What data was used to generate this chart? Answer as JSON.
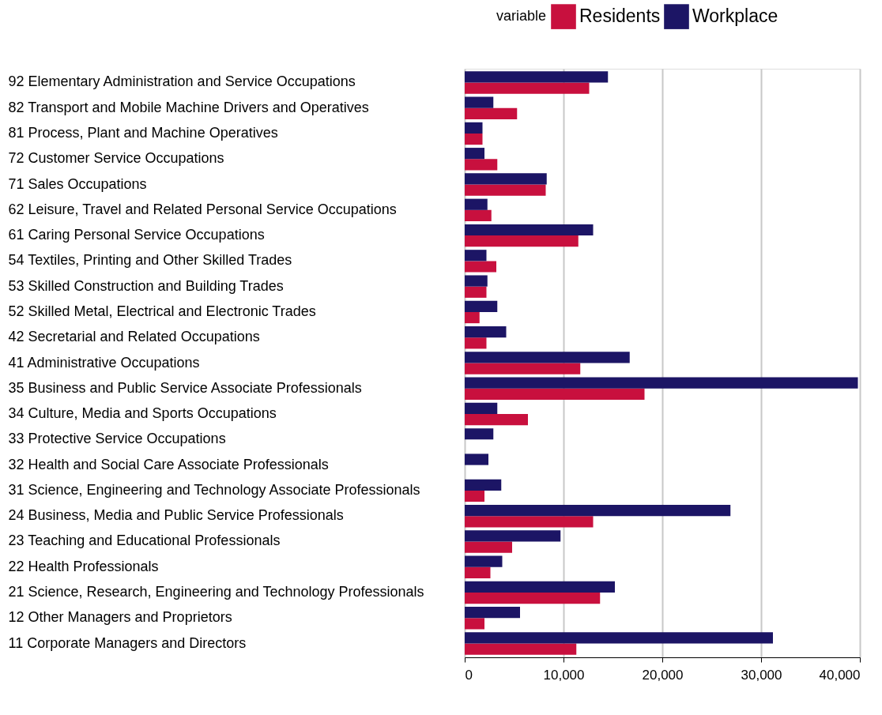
{
  "chart_data": {
    "type": "bar",
    "orientation": "horizontal",
    "legend_title": "variable",
    "legend": "top right",
    "grid": "x",
    "categories": [
      "92 Elementary Administration and Service Occupations",
      "82 Transport and Mobile Machine Drivers and Operatives",
      "81 Process, Plant and Machine Operatives",
      "72 Customer Service Occupations",
      "71 Sales Occupations",
      "62 Leisure, Travel and Related Personal Service Occupations",
      "61 Caring Personal Service Occupations",
      "54 Textiles, Printing and Other Skilled Trades",
      "53 Skilled Construction and Building Trades",
      "52 Skilled Metal, Electrical and Electronic Trades",
      "42 Secretarial and Related Occupations",
      "41 Administrative Occupations",
      "35 Business and Public Service Associate Professionals",
      "34 Culture, Media and Sports Occupations",
      "33 Protective Service Occupations",
      "32 Health and Social Care Associate Professionals",
      "31 Science, Engineering and Technology Associate Professionals",
      "24 Business, Media and Public Service Professionals",
      "23 Teaching and Educational Professionals",
      "22 Health Professionals",
      "21 Science, Research, Engineering and Technology Professionals",
      "12 Other Managers and Proprietors",
      "11 Corporate Managers and Directors"
    ],
    "series": [
      {
        "name": "Residents",
        "color": "#c8103e",
        "values": [
          12600,
          5300,
          1800,
          3300,
          8200,
          2700,
          11500,
          3200,
          2200,
          1500,
          2200,
          11700,
          18200,
          6400,
          null,
          null,
          2000,
          13000,
          4800,
          2600,
          13700,
          2000,
          11300
        ]
      },
      {
        "name": "Workplace",
        "color": "#1c1565",
        "values": [
          14500,
          2900,
          1800,
          2000,
          8300,
          2300,
          13000,
          2200,
          2300,
          3300,
          4200,
          16700,
          39800,
          3300,
          2900,
          2400,
          3700,
          26900,
          9700,
          3800,
          15200,
          5600,
          31200
        ]
      }
    ],
    "xlim": [
      0,
      40000
    ],
    "xticks": [
      0,
      {
        "value": 10000,
        "label": "10,000"
      },
      {
        "value": 20000,
        "label": "20,000"
      },
      {
        "value": 30000,
        "label": "30,000"
      },
      {
        "value": 40000,
        "label": "40,000"
      }
    ]
  }
}
